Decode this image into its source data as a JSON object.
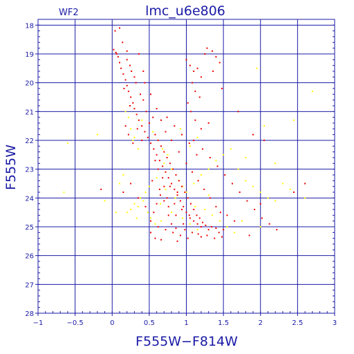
{
  "chart_data": {
    "type": "scatter",
    "title": "lmc_u6e806",
    "panel_label": "WF2",
    "xlabel": "F555W−F814W",
    "ylabel": "F555W",
    "xlim": [
      -1,
      3
    ],
    "ylim": [
      28,
      17.8
    ],
    "y_inverted": true,
    "grid": true,
    "x_ticks": [
      -1,
      -0.5,
      0,
      0.5,
      1,
      1.5,
      2,
      2.5,
      3
    ],
    "x_tick_labels": [
      "−1",
      "−0.5",
      "0",
      "0.5",
      "1",
      "1.5",
      "2",
      "2.5",
      "3"
    ],
    "y_ticks": [
      18,
      19,
      20,
      21,
      22,
      23,
      24,
      25,
      26,
      27,
      28
    ],
    "y_tick_labels": [
      "18",
      "19",
      "20",
      "21",
      "22",
      "23",
      "24",
      "25",
      "26",
      "27",
      "28"
    ],
    "series": [
      {
        "color": "#ffff00",
        "points": [
          [
            0.18,
            21.0
          ],
          [
            0.22,
            21.2
          ],
          [
            0.25,
            21.6
          ],
          [
            0.3,
            21.9
          ],
          [
            0.35,
            22.3
          ],
          [
            0.28,
            22.0
          ],
          [
            -0.2,
            21.8
          ],
          [
            -0.6,
            22.1
          ],
          [
            0.55,
            21.7
          ],
          [
            0.62,
            22.0
          ],
          [
            0.68,
            22.3
          ],
          [
            0.75,
            22.5
          ],
          [
            0.7,
            22.8
          ],
          [
            0.8,
            23.0
          ],
          [
            0.86,
            23.2
          ],
          [
            0.9,
            23.4
          ],
          [
            0.95,
            23.6
          ],
          [
            0.72,
            23.1
          ],
          [
            0.6,
            23.3
          ],
          [
            0.5,
            23.6
          ],
          [
            0.45,
            23.8
          ],
          [
            0.38,
            24.0
          ],
          [
            0.3,
            24.2
          ],
          [
            0.25,
            24.4
          ],
          [
            0.2,
            24.5
          ],
          [
            0.35,
            24.3
          ],
          [
            0.42,
            24.1
          ],
          [
            0.48,
            24.5
          ],
          [
            0.52,
            24.7
          ],
          [
            0.58,
            24.9
          ],
          [
            0.65,
            24.2
          ],
          [
            0.85,
            24.0
          ],
          [
            1.0,
            23.8
          ],
          [
            1.1,
            23.5
          ],
          [
            1.2,
            23.2
          ],
          [
            1.3,
            23.0
          ],
          [
            1.4,
            22.7
          ],
          [
            1.5,
            22.5
          ],
          [
            1.6,
            22.3
          ],
          [
            1.7,
            23.0
          ],
          [
            1.8,
            23.4
          ],
          [
            1.9,
            23.6
          ],
          [
            2.0,
            23.8
          ],
          [
            2.1,
            24.0
          ],
          [
            2.2,
            24.1
          ],
          [
            2.3,
            23.5
          ],
          [
            2.4,
            23.7
          ],
          [
            1.25,
            24.4
          ],
          [
            1.35,
            24.6
          ],
          [
            1.45,
            24.8
          ],
          [
            1.55,
            25.0
          ],
          [
            1.65,
            25.2
          ],
          [
            1.15,
            25.1
          ],
          [
            1.05,
            24.9
          ],
          [
            0.95,
            24.7
          ],
          [
            0.8,
            24.5
          ],
          [
            -0.65,
            23.8
          ],
          [
            -0.1,
            24.1
          ],
          [
            0.05,
            24.5
          ],
          [
            0.1,
            23.5
          ],
          [
            0.15,
            23.2
          ],
          [
            2.05,
            21.5
          ],
          [
            2.45,
            21.3
          ],
          [
            2.7,
            20.3
          ],
          [
            1.95,
            19.5
          ],
          [
            1.8,
            22.6
          ],
          [
            2.2,
            22.8
          ],
          [
            0.4,
            21.3
          ],
          [
            1.05,
            22.2
          ],
          [
            1.15,
            21.9
          ],
          [
            0.92,
            21.6
          ],
          [
            2.6,
            24.0
          ],
          [
            1.75,
            24.8
          ],
          [
            2.0,
            25.0
          ],
          [
            0.33,
            24.7
          ],
          [
            0.72,
            23.7
          ],
          [
            0.88,
            23.9
          ],
          [
            1.3,
            23.9
          ],
          [
            0.66,
            24.8
          ],
          [
            1.12,
            24.3
          ]
        ]
      },
      {
        "color": "#ee0000",
        "points": [
          [
            0.02,
            18.85
          ],
          [
            0.05,
            18.95
          ],
          [
            0.08,
            19.1
          ],
          [
            0.1,
            19.3
          ],
          [
            0.12,
            19.5
          ],
          [
            0.15,
            19.7
          ],
          [
            0.18,
            19.9
          ],
          [
            0.2,
            20.1
          ],
          [
            0.22,
            20.3
          ],
          [
            0.25,
            20.5
          ],
          [
            0.28,
            20.7
          ],
          [
            0.3,
            20.9
          ],
          [
            0.33,
            21.1
          ],
          [
            0.36,
            21.3
          ],
          [
            0.4,
            21.5
          ],
          [
            0.44,
            21.7
          ],
          [
            0.48,
            21.9
          ],
          [
            0.52,
            22.1
          ],
          [
            0.56,
            22.3
          ],
          [
            0.6,
            22.5
          ],
          [
            0.64,
            22.7
          ],
          [
            0.68,
            22.9
          ],
          [
            0.72,
            23.1
          ],
          [
            0.76,
            23.3
          ],
          [
            0.8,
            23.5
          ],
          [
            0.84,
            23.7
          ],
          [
            0.88,
            23.9
          ],
          [
            0.92,
            24.1
          ],
          [
            0.96,
            24.3
          ],
          [
            1.0,
            24.5
          ],
          [
            1.05,
            24.7
          ],
          [
            1.1,
            24.8
          ],
          [
            1.15,
            24.9
          ],
          [
            1.2,
            25.0
          ],
          [
            1.3,
            25.1
          ],
          [
            1.4,
            25.05
          ],
          [
            1.5,
            25.1
          ],
          [
            0.04,
            18.2
          ],
          [
            0.1,
            18.1
          ],
          [
            0.14,
            18.6
          ],
          [
            0.2,
            19.2
          ],
          [
            0.26,
            19.6
          ],
          [
            0.32,
            20.0
          ],
          [
            0.38,
            20.4
          ],
          [
            0.24,
            20.8
          ],
          [
            0.42,
            20.6
          ],
          [
            0.46,
            21.0
          ],
          [
            0.5,
            21.4
          ],
          [
            0.55,
            21.2
          ],
          [
            0.58,
            21.8
          ],
          [
            0.62,
            22.0
          ],
          [
            0.66,
            22.2
          ],
          [
            0.7,
            22.4
          ],
          [
            0.74,
            22.6
          ],
          [
            0.78,
            22.8
          ],
          [
            0.82,
            23.0
          ],
          [
            0.86,
            23.2
          ],
          [
            0.9,
            23.4
          ],
          [
            0.94,
            23.6
          ],
          [
            0.98,
            23.8
          ],
          [
            1.02,
            24.0
          ],
          [
            1.06,
            24.2
          ],
          [
            1.1,
            24.4
          ],
          [
            1.14,
            24.6
          ],
          [
            1.18,
            24.7
          ],
          [
            1.22,
            24.85
          ],
          [
            1.26,
            24.95
          ],
          [
            1.34,
            25.0
          ],
          [
            1.44,
            25.2
          ],
          [
            1.48,
            25.35
          ],
          [
            0.7,
            23.6
          ],
          [
            0.65,
            23.9
          ],
          [
            0.6,
            24.2
          ],
          [
            0.56,
            24.5
          ],
          [
            0.52,
            24.8
          ],
          [
            0.62,
            25.0
          ],
          [
            0.72,
            25.1
          ],
          [
            0.82,
            25.2
          ],
          [
            0.92,
            25.3
          ],
          [
            1.02,
            25.4
          ],
          [
            0.76,
            24.3
          ],
          [
            0.86,
            24.6
          ],
          [
            0.96,
            24.9
          ],
          [
            0.74,
            24.0
          ],
          [
            0.84,
            24.2
          ],
          [
            0.94,
            24.4
          ],
          [
            1.04,
            24.6
          ],
          [
            0.68,
            23.3
          ],
          [
            0.78,
            23.6
          ],
          [
            0.88,
            23.8
          ],
          [
            1.0,
            19.2
          ],
          [
            1.05,
            19.4
          ],
          [
            1.1,
            19.6
          ],
          [
            1.15,
            19.5
          ],
          [
            1.2,
            19.8
          ],
          [
            1.08,
            20.0
          ],
          [
            1.12,
            20.3
          ],
          [
            1.18,
            20.5
          ],
          [
            1.25,
            19.0
          ],
          [
            1.28,
            18.8
          ],
          [
            1.35,
            18.9
          ],
          [
            1.4,
            19.1
          ],
          [
            1.45,
            19.3
          ],
          [
            1.02,
            20.7
          ],
          [
            1.06,
            21.0
          ],
          [
            1.12,
            21.3
          ],
          [
            1.2,
            21.6
          ],
          [
            1.3,
            21.4
          ],
          [
            1.1,
            22.0
          ],
          [
            1.22,
            22.3
          ],
          [
            1.32,
            22.6
          ],
          [
            1.42,
            22.9
          ],
          [
            1.52,
            23.2
          ],
          [
            1.62,
            23.5
          ],
          [
            1.72,
            23.8
          ],
          [
            1.82,
            24.1
          ],
          [
            1.92,
            24.4
          ],
          [
            2.02,
            24.7
          ],
          [
            2.12,
            24.9
          ],
          [
            2.22,
            25.1
          ],
          [
            0.35,
            24.0
          ],
          [
            0.25,
            23.5
          ],
          [
            0.15,
            23.8
          ],
          [
            -0.15,
            23.7
          ],
          [
            0.45,
            24.3
          ],
          [
            0.52,
            25.2
          ],
          [
            0.58,
            25.4
          ],
          [
            0.66,
            25.45
          ],
          [
            0.88,
            25.5
          ],
          [
            1.2,
            25.35
          ],
          [
            1.55,
            24.6
          ],
          [
            1.65,
            24.8
          ],
          [
            1.85,
            25.3
          ],
          [
            2.0,
            24.2
          ],
          [
            2.45,
            23.8
          ],
          [
            2.6,
            23.5
          ],
          [
            2.05,
            22.0
          ],
          [
            1.9,
            21.8
          ],
          [
            1.7,
            21.0
          ],
          [
            1.48,
            20.2
          ],
          [
            0.18,
            21.5
          ],
          [
            0.22,
            21.8
          ],
          [
            0.28,
            22.1
          ],
          [
            0.34,
            21.6
          ],
          [
            0.4,
            22.0
          ],
          [
            0.06,
            19.0
          ],
          [
            0.16,
            20.2
          ],
          [
            0.3,
            19.8
          ],
          [
            0.44,
            20.0
          ],
          [
            0.52,
            20.4
          ],
          [
            0.6,
            20.9
          ],
          [
            0.66,
            21.3
          ],
          [
            0.72,
            21.7
          ],
          [
            0.8,
            22.0
          ],
          [
            0.9,
            22.4
          ],
          [
            1.0,
            22.8
          ],
          [
            1.08,
            23.1
          ],
          [
            1.16,
            23.4
          ],
          [
            1.24,
            23.7
          ],
          [
            1.32,
            24.0
          ],
          [
            1.4,
            24.3
          ],
          [
            1.46,
            24.5
          ],
          [
            0.62,
            23.0
          ],
          [
            0.58,
            22.7
          ],
          [
            0.54,
            23.4
          ],
          [
            0.64,
            23.7
          ],
          [
            0.7,
            24.1
          ],
          [
            0.76,
            24.6
          ],
          [
            0.8,
            24.9
          ],
          [
            0.86,
            25.05
          ],
          [
            0.98,
            25.1
          ],
          [
            1.08,
            25.2
          ],
          [
            1.16,
            25.25
          ],
          [
            1.28,
            25.3
          ],
          [
            1.38,
            25.4
          ],
          [
            0.74,
            21.2
          ],
          [
            0.84,
            21.5
          ],
          [
            0.94,
            21.8
          ],
          [
            1.04,
            22.1
          ],
          [
            1.14,
            22.5
          ],
          [
            0.2,
            18.9
          ],
          [
            0.24,
            19.4
          ],
          [
            0.36,
            19.0
          ],
          [
            0.42,
            19.6
          ],
          [
            1.36,
            19.6
          ]
        ]
      }
    ]
  }
}
